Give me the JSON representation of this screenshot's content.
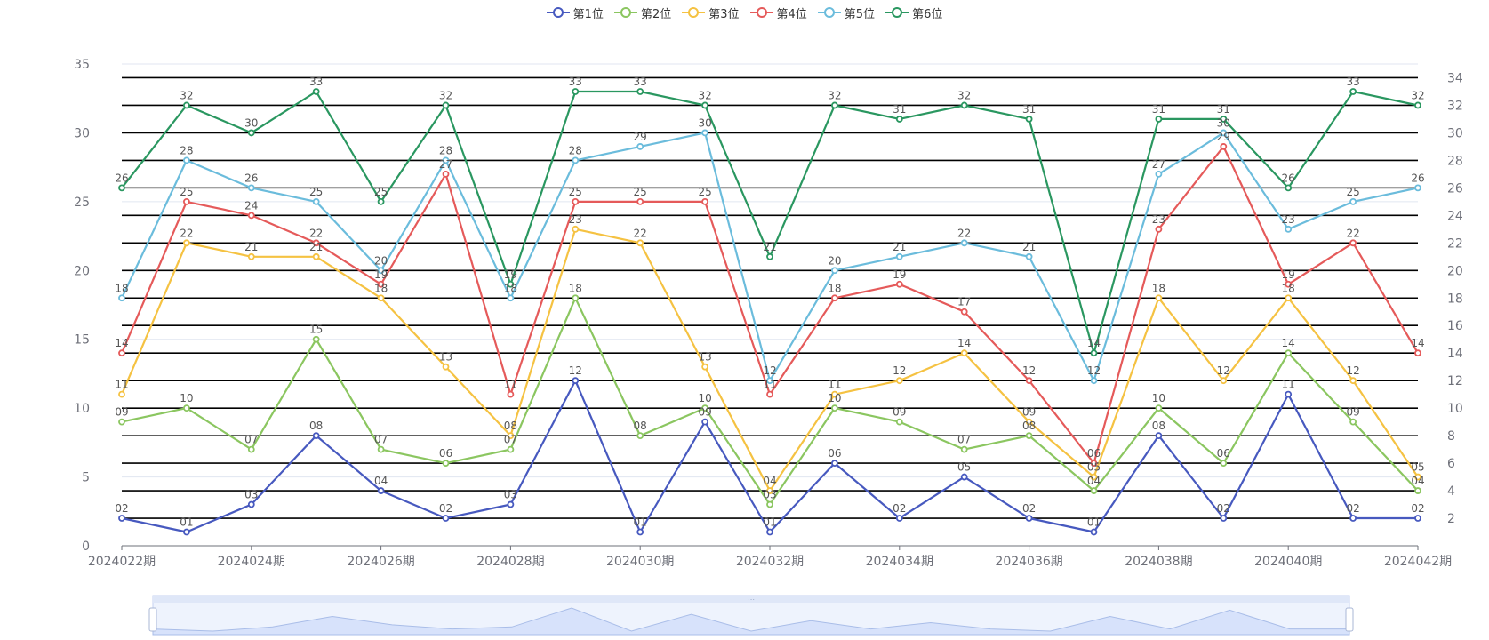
{
  "colors": {
    "series": [
      "#4759bf",
      "#8bc660",
      "#f5c242",
      "#e55a5a",
      "#6bbcdc",
      "#2a9760"
    ],
    "axis": "#6e7079",
    "grid": "#e0e6f1",
    "refline": "#000000",
    "zoom_fill": "#d7e2fb",
    "zoom_border": "#c4d2f2"
  },
  "legend": {
    "position": "top-center",
    "items": [
      "第1位",
      "第2位",
      "第3位",
      "第4位",
      "第5位",
      "第6位"
    ]
  },
  "chart_data": {
    "type": "line",
    "title": "",
    "xlabel": "",
    "ylabel": "",
    "x": [
      "2024022期",
      "2024023期",
      "2024024期",
      "2024025期",
      "2024026期",
      "2024027期",
      "2024028期",
      "2024029期",
      "2024030期",
      "2024031期",
      "2024032期",
      "2024033期",
      "2024034期",
      "2024035期",
      "2024036期",
      "2024037期",
      "2024038期",
      "2024039期",
      "2024040期",
      "2024041期",
      "2024042期"
    ],
    "x_tick_labels": [
      "2024022期",
      "2024024期",
      "2024026期",
      "2024028期",
      "2024030期",
      "2024032期",
      "2024034期",
      "2024036期",
      "2024038期",
      "2024040期",
      "2024042期"
    ],
    "ylim": [
      0,
      35
    ],
    "y_ticks": [
      0,
      5,
      10,
      15,
      20,
      25,
      30,
      35
    ],
    "right_axis_ticks": [
      2,
      4,
      6,
      8,
      10,
      12,
      14,
      16,
      18,
      20,
      22,
      24,
      26,
      28,
      30,
      32,
      34
    ],
    "grid": true,
    "series": [
      {
        "name": "第1位",
        "values": [
          2,
          1,
          3,
          8,
          4,
          2,
          3,
          12,
          1,
          9,
          1,
          6,
          2,
          5,
          2,
          1,
          8,
          2,
          11,
          2,
          2
        ],
        "labels": [
          "02",
          "01",
          "03",
          "08",
          "04",
          "02",
          "03",
          "12",
          "01",
          "09",
          "01",
          "06",
          "02",
          "05",
          "02",
          "01",
          "08",
          "02",
          "11",
          "02",
          "02"
        ]
      },
      {
        "name": "第2位",
        "values": [
          9,
          10,
          7,
          15,
          7,
          6,
          7,
          18,
          8,
          10,
          3,
          10,
          9,
          7,
          8,
          4,
          10,
          6,
          14,
          9,
          4
        ],
        "labels": [
          "09",
          "10",
          "07",
          "15",
          "07",
          "06",
          "07",
          "18",
          "08",
          "10",
          "03",
          "10",
          "09",
          "07",
          "08",
          "04",
          "10",
          "06",
          "14",
          "09",
          "04"
        ]
      },
      {
        "name": "第3位",
        "values": [
          11,
          22,
          21,
          21,
          18,
          13,
          8,
          23,
          22,
          13,
          4,
          11,
          12,
          14,
          9,
          5,
          18,
          12,
          18,
          12,
          5
        ],
        "labels": [
          "11",
          "22",
          "21",
          "21",
          "18",
          "13",
          "08",
          "23",
          "22",
          "13",
          "04",
          "11",
          "12",
          "14",
          "09",
          "05",
          "18",
          "12",
          "18",
          "12",
          "05"
        ]
      },
      {
        "name": "第4位",
        "values": [
          14,
          25,
          24,
          22,
          19,
          27,
          11,
          25,
          25,
          25,
          11,
          18,
          19,
          17,
          12,
          6,
          23,
          29,
          19,
          22,
          14
        ],
        "labels": [
          "14",
          "25",
          "24",
          "22",
          "19",
          "27",
          "11",
          "25",
          "25",
          "25",
          "11",
          "18",
          "19",
          "17",
          "12",
          "06",
          "23",
          "29",
          "19",
          "22",
          "14"
        ]
      },
      {
        "name": "第5位",
        "values": [
          18,
          28,
          26,
          25,
          20,
          28,
          18,
          28,
          29,
          30,
          12,
          20,
          21,
          22,
          21,
          12,
          27,
          30,
          23,
          25,
          26
        ],
        "labels": [
          "18",
          "28",
          "26",
          "25",
          "20",
          "28",
          "18",
          "28",
          "29",
          "30",
          "12",
          "20",
          "21",
          "22",
          "21",
          "12",
          "27",
          "30",
          "23",
          "25",
          "26"
        ]
      },
      {
        "name": "第6位",
        "values": [
          26,
          32,
          30,
          33,
          25,
          32,
          19,
          33,
          33,
          32,
          21,
          32,
          31,
          32,
          31,
          14,
          31,
          31,
          26,
          33,
          32
        ],
        "labels": [
          "26",
          "32",
          "30",
          "33",
          "25",
          "32",
          "19",
          "33",
          "33",
          "32",
          "21",
          "32",
          "31",
          "32",
          "31",
          "14",
          "31",
          "31",
          "26",
          "33",
          "32"
        ]
      }
    ]
  }
}
